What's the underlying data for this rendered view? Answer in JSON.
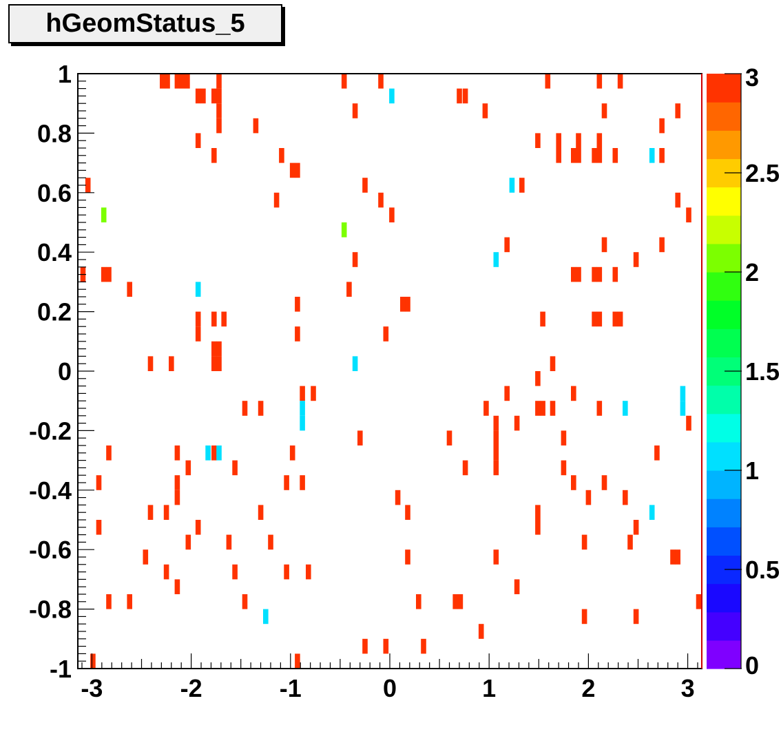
{
  "title": "hGeomStatus_5",
  "chart_data": {
    "type": "heatmap",
    "title": "hGeomStatus_5",
    "xlim": [
      -3.1416,
      3.1416
    ],
    "ylim": [
      -1,
      1
    ],
    "zlim": [
      0,
      3
    ],
    "bin_width": [
      0.0524,
      0.05
    ],
    "x_ticks": [
      -3,
      -2,
      -1,
      0,
      1,
      2,
      3
    ],
    "x_tick_labels": [
      "-3",
      "-2",
      "-1",
      "0",
      "1",
      "2",
      "3"
    ],
    "y_ticks": [
      -1,
      -0.8,
      -0.6,
      -0.4,
      -0.2,
      0,
      0.2,
      0.4,
      0.6,
      0.8,
      1
    ],
    "y_tick_labels": [
      "-1",
      "-0.8",
      "-0.6",
      "-0.4",
      "-0.2",
      "0",
      "0.2",
      "0.4",
      "0.6",
      "0.8",
      "1"
    ],
    "z_ticks": [
      0,
      0.5,
      1,
      1.5,
      2,
      2.5,
      3
    ],
    "z_tick_labels": [
      "0",
      "0.5",
      "1",
      "1.5",
      "2",
      "2.5",
      "3"
    ],
    "palette": [
      "#7f00ff",
      "#4400ff",
      "#1a08ff",
      "#0a28ff",
      "#0050ff",
      "#0082ff",
      "#00b4ff",
      "#00e0ff",
      "#00ffe6",
      "#00ffaa",
      "#00ff78",
      "#00ff50",
      "#00ff28",
      "#30ff10",
      "#7cff00",
      "#c8ff00",
      "#ffff00",
      "#ffcc00",
      "#ff9900",
      "#ff6600",
      "#ff3300"
    ],
    "points": [
      {
        "x": -2.29,
        "y": 0.975,
        "z": 3
      },
      {
        "x": -2.24,
        "y": 0.975,
        "z": 3
      },
      {
        "x": -2.14,
        "y": 0.975,
        "z": 3
      },
      {
        "x": -2.09,
        "y": 0.975,
        "z": 3
      },
      {
        "x": -2.04,
        "y": 0.975,
        "z": 3
      },
      {
        "x": -1.72,
        "y": 0.975,
        "z": 3
      },
      {
        "x": -0.46,
        "y": 0.975,
        "z": 3
      },
      {
        "x": -0.09,
        "y": 0.975,
        "z": 3
      },
      {
        "x": 1.59,
        "y": 0.975,
        "z": 3
      },
      {
        "x": 2.11,
        "y": 0.975,
        "z": 3
      },
      {
        "x": 2.32,
        "y": 0.975,
        "z": 3
      },
      {
        "x": -1.93,
        "y": 0.925,
        "z": 3
      },
      {
        "x": -1.88,
        "y": 0.925,
        "z": 3
      },
      {
        "x": -1.77,
        "y": 0.925,
        "z": 3
      },
      {
        "x": -1.72,
        "y": 0.925,
        "z": 3
      },
      {
        "x": 0.02,
        "y": 0.925,
        "z": 1
      },
      {
        "x": 0.7,
        "y": 0.925,
        "z": 3
      },
      {
        "x": 0.76,
        "y": 0.925,
        "z": 3
      },
      {
        "x": -1.72,
        "y": 0.875,
        "z": 3
      },
      {
        "x": -0.35,
        "y": 0.875,
        "z": 3
      },
      {
        "x": 0.96,
        "y": 0.875,
        "z": 3
      },
      {
        "x": 2.16,
        "y": 0.875,
        "z": 3
      },
      {
        "x": 2.9,
        "y": 0.875,
        "z": 3
      },
      {
        "x": -1.72,
        "y": 0.825,
        "z": 3
      },
      {
        "x": -1.35,
        "y": 0.825,
        "z": 3
      },
      {
        "x": 2.74,
        "y": 0.825,
        "z": 3
      },
      {
        "x": -1.93,
        "y": 0.775,
        "z": 3
      },
      {
        "x": 1.49,
        "y": 0.775,
        "z": 3
      },
      {
        "x": 1.7,
        "y": 0.775,
        "z": 3
      },
      {
        "x": 1.9,
        "y": 0.775,
        "z": 3
      },
      {
        "x": 2.11,
        "y": 0.775,
        "z": 3
      },
      {
        "x": -1.77,
        "y": 0.725,
        "z": 3
      },
      {
        "x": -1.09,
        "y": 0.725,
        "z": 3
      },
      {
        "x": 1.7,
        "y": 0.725,
        "z": 3
      },
      {
        "x": 1.85,
        "y": 0.725,
        "z": 3
      },
      {
        "x": 1.9,
        "y": 0.725,
        "z": 3
      },
      {
        "x": 2.06,
        "y": 0.725,
        "z": 3
      },
      {
        "x": 2.11,
        "y": 0.725,
        "z": 3
      },
      {
        "x": 2.27,
        "y": 0.725,
        "z": 3
      },
      {
        "x": 2.64,
        "y": 0.725,
        "z": 1
      },
      {
        "x": 2.74,
        "y": 0.725,
        "z": 3
      },
      {
        "x": -0.98,
        "y": 0.675,
        "z": 3
      },
      {
        "x": -0.93,
        "y": 0.675,
        "z": 3
      },
      {
        "x": -3.04,
        "y": 0.625,
        "z": 3
      },
      {
        "x": -0.25,
        "y": 0.625,
        "z": 3
      },
      {
        "x": 1.23,
        "y": 0.625,
        "z": 1
      },
      {
        "x": 1.33,
        "y": 0.625,
        "z": 3
      },
      {
        "x": -1.14,
        "y": 0.575,
        "z": 3
      },
      {
        "x": -0.09,
        "y": 0.575,
        "z": 3
      },
      {
        "x": 2.9,
        "y": 0.575,
        "z": 3
      },
      {
        "x": -2.88,
        "y": 0.525,
        "z": 2.1
      },
      {
        "x": 0.02,
        "y": 0.525,
        "z": 3
      },
      {
        "x": 3.01,
        "y": 0.525,
        "z": 3
      },
      {
        "x": -0.46,
        "y": 0.475,
        "z": 2.1
      },
      {
        "x": 1.18,
        "y": 0.425,
        "z": 3
      },
      {
        "x": 2.16,
        "y": 0.425,
        "z": 3
      },
      {
        "x": 2.74,
        "y": 0.425,
        "z": 3
      },
      {
        "x": -0.35,
        "y": 0.375,
        "z": 3
      },
      {
        "x": 1.07,
        "y": 0.375,
        "z": 1
      },
      {
        "x": 2.48,
        "y": 0.375,
        "z": 3
      },
      {
        "x": -3.09,
        "y": 0.325,
        "z": 3
      },
      {
        "x": -2.88,
        "y": 0.325,
        "z": 3
      },
      {
        "x": -2.83,
        "y": 0.325,
        "z": 3
      },
      {
        "x": 1.85,
        "y": 0.325,
        "z": 3
      },
      {
        "x": 1.9,
        "y": 0.325,
        "z": 3
      },
      {
        "x": 2.06,
        "y": 0.325,
        "z": 3
      },
      {
        "x": 2.11,
        "y": 0.325,
        "z": 3
      },
      {
        "x": 2.27,
        "y": 0.325,
        "z": 3
      },
      {
        "x": -2.62,
        "y": 0.275,
        "z": 3
      },
      {
        "x": -1.93,
        "y": 0.275,
        "z": 1
      },
      {
        "x": -0.41,
        "y": 0.275,
        "z": 3
      },
      {
        "x": -0.93,
        "y": 0.225,
        "z": 3
      },
      {
        "x": 0.13,
        "y": 0.225,
        "z": 3
      },
      {
        "x": 0.18,
        "y": 0.225,
        "z": 3
      },
      {
        "x": -1.93,
        "y": 0.175,
        "z": 3
      },
      {
        "x": -1.77,
        "y": 0.175,
        "z": 3
      },
      {
        "x": -1.67,
        "y": 0.175,
        "z": 3
      },
      {
        "x": 1.54,
        "y": 0.175,
        "z": 3
      },
      {
        "x": 2.06,
        "y": 0.175,
        "z": 3
      },
      {
        "x": 2.11,
        "y": 0.175,
        "z": 3
      },
      {
        "x": 2.27,
        "y": 0.175,
        "z": 3
      },
      {
        "x": 2.32,
        "y": 0.175,
        "z": 3
      },
      {
        "x": -1.93,
        "y": 0.125,
        "z": 3
      },
      {
        "x": -0.93,
        "y": 0.125,
        "z": 3
      },
      {
        "x": -0.04,
        "y": 0.125,
        "z": 3
      },
      {
        "x": -1.77,
        "y": 0.075,
        "z": 3
      },
      {
        "x": -1.72,
        "y": 0.075,
        "z": 3
      },
      {
        "x": -2.41,
        "y": 0.025,
        "z": 3
      },
      {
        "x": -2.2,
        "y": 0.025,
        "z": 3
      },
      {
        "x": -1.77,
        "y": 0.025,
        "z": 3
      },
      {
        "x": -1.72,
        "y": 0.025,
        "z": 3
      },
      {
        "x": -0.35,
        "y": 0.025,
        "z": 1
      },
      {
        "x": 1.64,
        "y": 0.025,
        "z": 3
      },
      {
        "x": 1.49,
        "y": -0.025,
        "z": 3
      },
      {
        "x": -0.88,
        "y": -0.075,
        "z": 3
      },
      {
        "x": -0.77,
        "y": -0.075,
        "z": 3
      },
      {
        "x": 1.18,
        "y": -0.075,
        "z": 3
      },
      {
        "x": 1.85,
        "y": -0.075,
        "z": 3
      },
      {
        "x": 2.95,
        "y": -0.075,
        "z": 1
      },
      {
        "x": -1.46,
        "y": -0.125,
        "z": 3
      },
      {
        "x": -1.3,
        "y": -0.125,
        "z": 3
      },
      {
        "x": -0.88,
        "y": -0.125,
        "z": 1
      },
      {
        "x": 0.97,
        "y": -0.125,
        "z": 3
      },
      {
        "x": 1.49,
        "y": -0.125,
        "z": 3
      },
      {
        "x": 1.54,
        "y": -0.125,
        "z": 3
      },
      {
        "x": 1.64,
        "y": -0.125,
        "z": 3
      },
      {
        "x": 2.11,
        "y": -0.125,
        "z": 3
      },
      {
        "x": 2.37,
        "y": -0.125,
        "z": 1
      },
      {
        "x": 2.95,
        "y": -0.125,
        "z": 1
      },
      {
        "x": -0.88,
        "y": -0.175,
        "z": 1
      },
      {
        "x": 1.07,
        "y": -0.175,
        "z": 3
      },
      {
        "x": 1.28,
        "y": -0.175,
        "z": 3
      },
      {
        "x": 3.01,
        "y": -0.175,
        "z": 3
      },
      {
        "x": -0.3,
        "y": -0.225,
        "z": 3
      },
      {
        "x": 0.6,
        "y": -0.225,
        "z": 3
      },
      {
        "x": 1.07,
        "y": -0.225,
        "z": 3
      },
      {
        "x": 1.75,
        "y": -0.225,
        "z": 3
      },
      {
        "x": -2.83,
        "y": -0.275,
        "z": 3
      },
      {
        "x": -2.14,
        "y": -0.275,
        "z": 3
      },
      {
        "x": -1.83,
        "y": -0.275,
        "z": 1
      },
      {
        "x": -1.77,
        "y": -0.275,
        "z": 3
      },
      {
        "x": -1.72,
        "y": -0.275,
        "z": 1
      },
      {
        "x": -0.98,
        "y": -0.275,
        "z": 3
      },
      {
        "x": 1.07,
        "y": -0.275,
        "z": 3
      },
      {
        "x": 2.69,
        "y": -0.275,
        "z": 3
      },
      {
        "x": -2.03,
        "y": -0.325,
        "z": 3
      },
      {
        "x": -1.56,
        "y": -0.325,
        "z": 3
      },
      {
        "x": 0.76,
        "y": -0.325,
        "z": 3
      },
      {
        "x": 1.07,
        "y": -0.325,
        "z": 3
      },
      {
        "x": 1.75,
        "y": -0.325,
        "z": 3
      },
      {
        "x": -2.93,
        "y": -0.375,
        "z": 3
      },
      {
        "x": -2.14,
        "y": -0.375,
        "z": 3
      },
      {
        "x": -1.04,
        "y": -0.375,
        "z": 3
      },
      {
        "x": -0.88,
        "y": -0.375,
        "z": 3
      },
      {
        "x": 1.85,
        "y": -0.375,
        "z": 3
      },
      {
        "x": 2.16,
        "y": -0.375,
        "z": 3
      },
      {
        "x": -2.14,
        "y": -0.425,
        "z": 3
      },
      {
        "x": 0.08,
        "y": -0.425,
        "z": 3
      },
      {
        "x": 2.0,
        "y": -0.425,
        "z": 3
      },
      {
        "x": 2.37,
        "y": -0.425,
        "z": 3
      },
      {
        "x": -2.41,
        "y": -0.475,
        "z": 3
      },
      {
        "x": -2.25,
        "y": -0.475,
        "z": 3
      },
      {
        "x": -1.3,
        "y": -0.475,
        "z": 3
      },
      {
        "x": 0.18,
        "y": -0.475,
        "z": 3
      },
      {
        "x": 1.49,
        "y": -0.475,
        "z": 3
      },
      {
        "x": 2.64,
        "y": -0.475,
        "z": 1
      },
      {
        "x": -2.93,
        "y": -0.525,
        "z": 3
      },
      {
        "x": -1.93,
        "y": -0.525,
        "z": 3
      },
      {
        "x": 1.49,
        "y": -0.525,
        "z": 3
      },
      {
        "x": 2.48,
        "y": -0.525,
        "z": 3
      },
      {
        "x": -2.03,
        "y": -0.575,
        "z": 3
      },
      {
        "x": -1.62,
        "y": -0.575,
        "z": 3
      },
      {
        "x": -1.2,
        "y": -0.575,
        "z": 3
      },
      {
        "x": 1.96,
        "y": -0.575,
        "z": 3
      },
      {
        "x": 2.42,
        "y": -0.575,
        "z": 3
      },
      {
        "x": -2.46,
        "y": -0.625,
        "z": 3
      },
      {
        "x": 0.18,
        "y": -0.625,
        "z": 3
      },
      {
        "x": 1.07,
        "y": -0.625,
        "z": 3
      },
      {
        "x": 2.85,
        "y": -0.625,
        "z": 3
      },
      {
        "x": 2.9,
        "y": -0.625,
        "z": 3
      },
      {
        "x": -2.25,
        "y": -0.675,
        "z": 3
      },
      {
        "x": -1.56,
        "y": -0.675,
        "z": 3
      },
      {
        "x": -1.04,
        "y": -0.675,
        "z": 3
      },
      {
        "x": -0.82,
        "y": -0.675,
        "z": 3
      },
      {
        "x": -2.14,
        "y": -0.725,
        "z": 3
      },
      {
        "x": 1.28,
        "y": -0.725,
        "z": 3
      },
      {
        "x": -2.83,
        "y": -0.775,
        "z": 3
      },
      {
        "x": -2.62,
        "y": -0.775,
        "z": 3
      },
      {
        "x": -1.46,
        "y": -0.775,
        "z": 3
      },
      {
        "x": 0.29,
        "y": -0.775,
        "z": 3
      },
      {
        "x": 0.66,
        "y": -0.775,
        "z": 3
      },
      {
        "x": 0.71,
        "y": -0.775,
        "z": 3
      },
      {
        "x": 3.11,
        "y": -0.775,
        "z": 3
      },
      {
        "x": -1.25,
        "y": -0.825,
        "z": 1
      },
      {
        "x": 1.96,
        "y": -0.825,
        "z": 3
      },
      {
        "x": 2.48,
        "y": -0.825,
        "z": 3
      },
      {
        "x": 0.92,
        "y": -0.875,
        "z": 3
      },
      {
        "x": -0.25,
        "y": -0.925,
        "z": 3
      },
      {
        "x": -0.04,
        "y": -0.925,
        "z": 3
      },
      {
        "x": 0.34,
        "y": -0.925,
        "z": 3
      },
      {
        "x": -2.99,
        "y": -0.975,
        "z": 3
      },
      {
        "x": -0.93,
        "y": -0.975,
        "z": 3
      }
    ]
  }
}
